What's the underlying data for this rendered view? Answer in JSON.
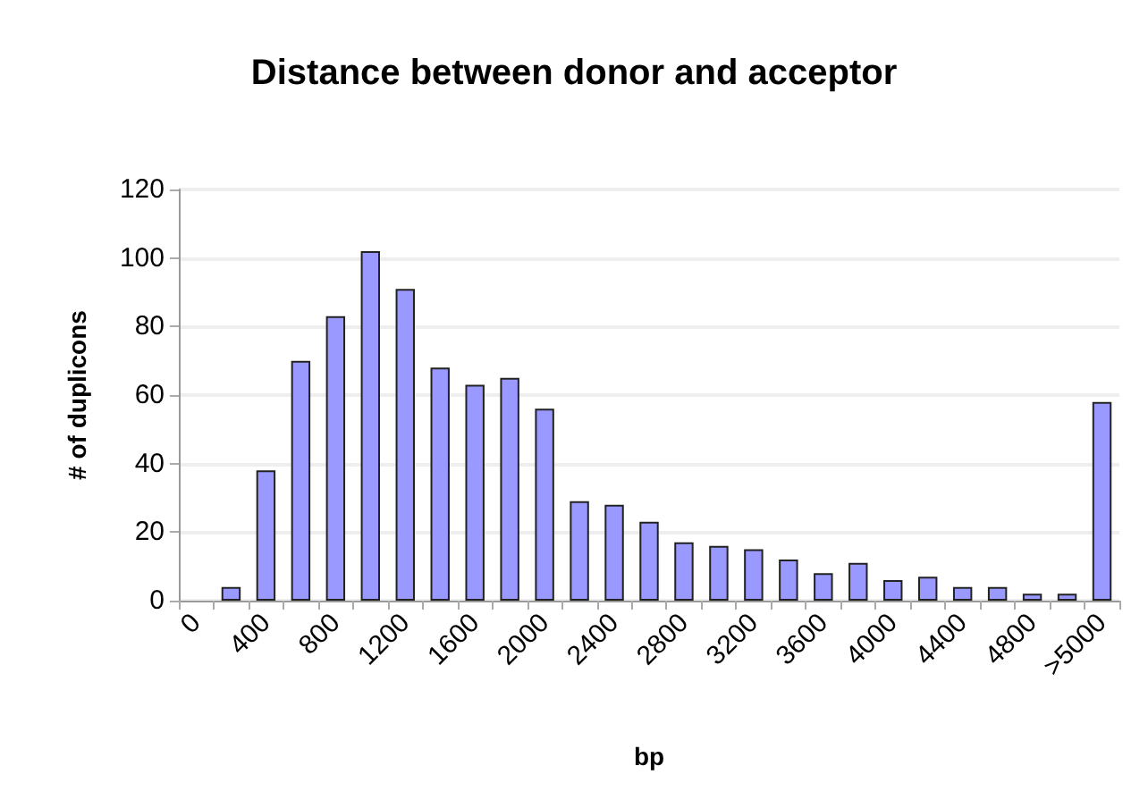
{
  "chart_data": {
    "type": "histogram",
    "title": "Distance between donor and acceptor",
    "xlabel": "bp",
    "ylabel": "# of duplicons",
    "categories": [
      "0",
      null,
      "400",
      null,
      "800",
      null,
      "1200",
      null,
      "1600",
      null,
      "2000",
      null,
      "2400",
      null,
      "2800",
      null,
      "3200",
      null,
      "3600",
      null,
      "4000",
      null,
      "4400",
      null,
      "4800",
      null,
      ">5000"
    ],
    "values": [
      null,
      4,
      38,
      70,
      83,
      102,
      91,
      68,
      63,
      65,
      56,
      29,
      28,
      23,
      17,
      16,
      15,
      12,
      8,
      11,
      6,
      7,
      4,
      4,
      2,
      2,
      58
    ],
    "color": "#9999ff",
    "ylim": [
      0,
      120
    ],
    "yticks": [
      0,
      20,
      40,
      60,
      80,
      100,
      120
    ],
    "grid": "y"
  }
}
